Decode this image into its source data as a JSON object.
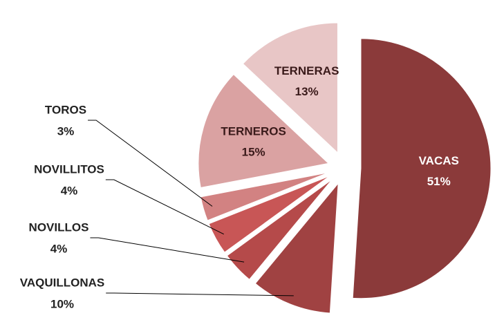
{
  "chart_data": {
    "type": "pie",
    "categories": [
      "VACAS",
      "VAQUILLONAS",
      "NOVILLOS",
      "NOVILLITOS",
      "TOROS",
      "TERNEROS",
      "TERNERAS"
    ],
    "values": [
      51,
      10,
      4,
      4,
      3,
      15,
      13
    ],
    "value_labels": [
      "51%",
      "10%",
      "4%",
      "4%",
      "3%",
      "15%",
      "13%"
    ],
    "colors": [
      "#8b3a3a",
      "#a04242",
      "#b54a4a",
      "#c85656",
      "#d28282",
      "#daa2a2",
      "#e8c6c6"
    ]
  }
}
